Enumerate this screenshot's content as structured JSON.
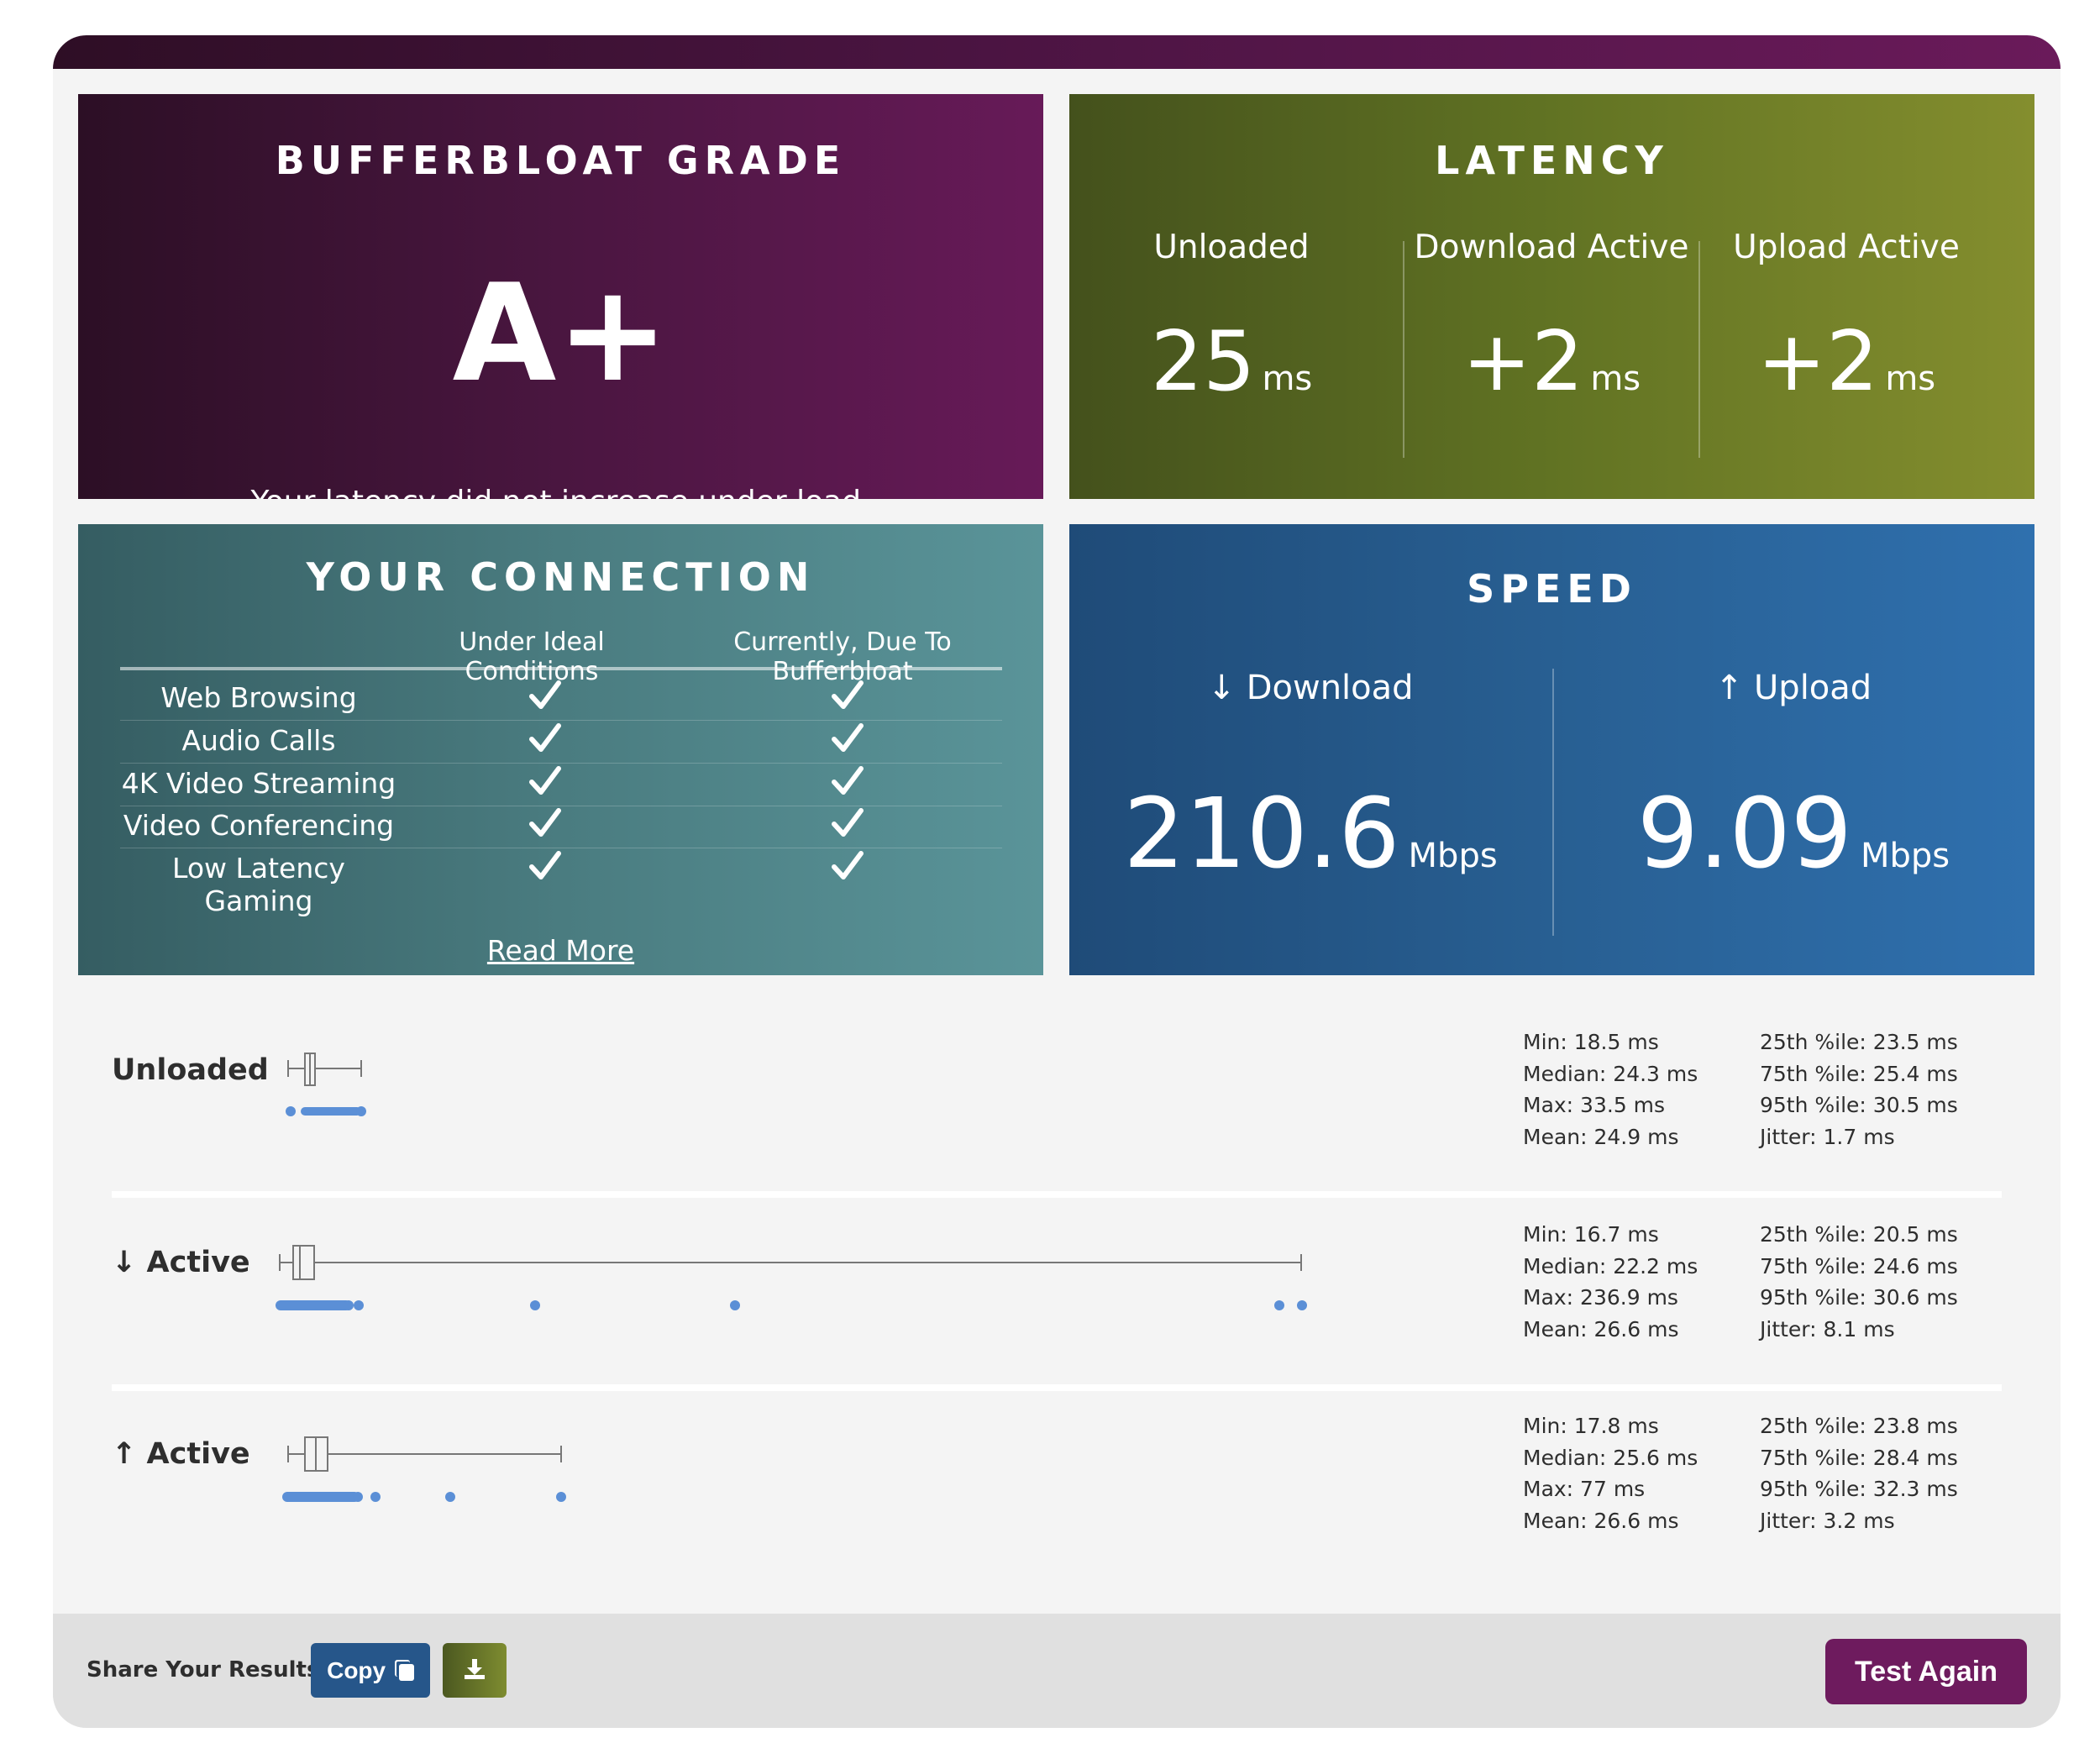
{
  "grade": {
    "title": "BUFFERBLOAT GRADE",
    "letter": "A+",
    "description": "Your latency did not increase under load."
  },
  "latency": {
    "title": "LATENCY",
    "columns": [
      {
        "label": "Unloaded",
        "value": "25",
        "unit": "ms"
      },
      {
        "label": "Download Active",
        "value": "+2",
        "unit": "ms"
      },
      {
        "label": "Upload Active",
        "value": "+2",
        "unit": "ms"
      }
    ]
  },
  "connection": {
    "title": "YOUR CONNECTION",
    "col_ideal": "Under Ideal Conditions",
    "col_current": "Currently, Due To Bufferbloat",
    "rows": [
      {
        "name": "Web Browsing",
        "ideal": true,
        "current": true
      },
      {
        "name": "Audio Calls",
        "ideal": true,
        "current": true
      },
      {
        "name": "4K Video Streaming",
        "ideal": true,
        "current": true
      },
      {
        "name": "Video Conferencing",
        "ideal": true,
        "current": true
      },
      {
        "name": "Low Latency Gaming",
        "ideal": true,
        "current": true
      }
    ],
    "read_more": "Read More"
  },
  "speed": {
    "title": "SPEED",
    "download": {
      "label": "↓ Download",
      "value": "210.6",
      "unit": "Mbps"
    },
    "upload": {
      "label": "↑ Upload",
      "value": "9.09",
      "unit": "Mbps"
    }
  },
  "stats": [
    {
      "label": "Unloaded",
      "min": "Min: 18.5 ms",
      "median": "Median: 24.3 ms",
      "max": "Max: 33.5 ms",
      "mean": "Mean: 24.9 ms",
      "p25": "25th %ile: 23.5 ms",
      "p75": "75th %ile: 25.4 ms",
      "p95": "95th %ile: 30.5 ms",
      "jitter": "Jitter: 1.7 ms"
    },
    {
      "label": "↓ Active",
      "min": "Min: 16.7 ms",
      "median": "Median: 22.2 ms",
      "max": "Max: 236.9 ms",
      "mean": "Mean: 26.6 ms",
      "p25": "25th %ile: 20.5 ms",
      "p75": "75th %ile: 24.6 ms",
      "p95": "95th %ile: 30.6 ms",
      "jitter": "Jitter: 8.1 ms"
    },
    {
      "label": "↑ Active",
      "min": "Min: 17.8 ms",
      "median": "Median: 25.6 ms",
      "max": "Max: 77 ms",
      "mean": "Mean: 26.6 ms",
      "p25": "25th %ile: 23.8 ms",
      "p75": "75th %ile: 28.4 ms",
      "p95": "95th %ile: 32.3 ms",
      "jitter": "Jitter: 3.2 ms"
    }
  ],
  "footer": {
    "share_label": "Share Your Results:",
    "copy_label": "Copy",
    "test_again_label": "Test Again"
  },
  "colors": {
    "grade": "#4a1640",
    "latency": "#617323",
    "connection": "#4a7c80",
    "speed": "#285f92",
    "plot_blue": "#5b8fd6",
    "test_again": "#6e1b5e",
    "copy": "#26568a"
  }
}
